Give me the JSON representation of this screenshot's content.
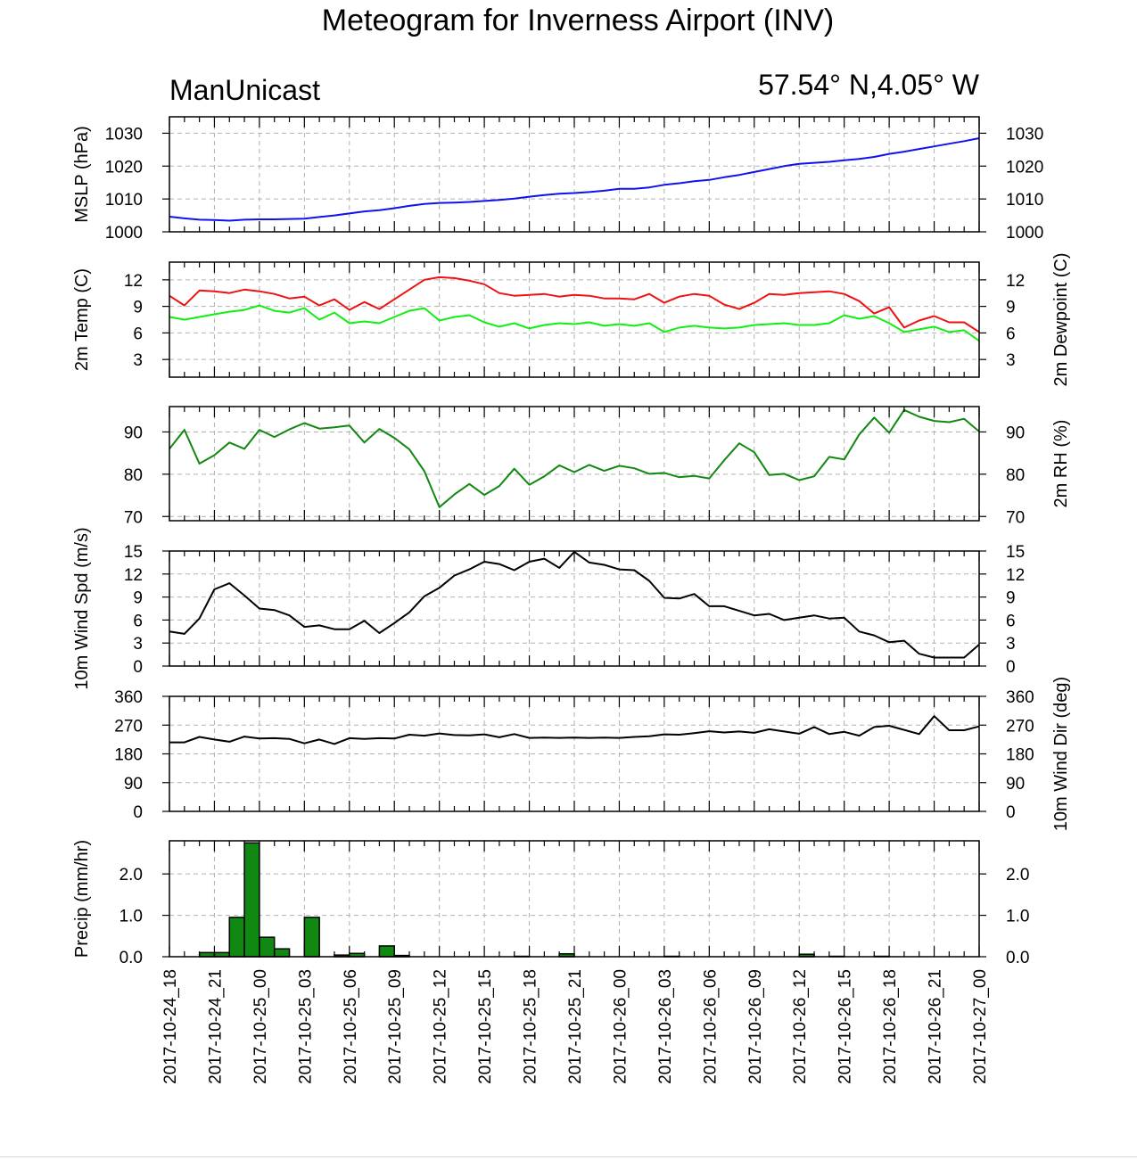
{
  "title": "Meteogram for Inverness Airport (INV)",
  "model": "ManUnicast",
  "location": "57.54° N,4.05° W",
  "colors": {
    "mslp": "#1111ee",
    "temp": "#ee1111",
    "dewpoint": "#11ee11",
    "rh": "#118811",
    "wind": "#000000",
    "precip_fill": "#118811",
    "grid": "#b0b0b0"
  },
  "chart_data": {
    "type": "line",
    "x_unit": "hours after 2017-10-24_18",
    "x_ticks": [
      "2017-10-24_18",
      "2017-10-24_21",
      "2017-10-25_00",
      "2017-10-25_03",
      "2017-10-25_06",
      "2017-10-25_09",
      "2017-10-25_12",
      "2017-10-25_15",
      "2017-10-25_18",
      "2017-10-25_21",
      "2017-10-26_00",
      "2017-10-26_03",
      "2017-10-26_06",
      "2017-10-26_09",
      "2017-10-26_12",
      "2017-10-26_15",
      "2017-10-26_18",
      "2017-10-26_21",
      "2017-10-27_00"
    ],
    "panels": [
      {
        "id": "mslp",
        "ylabel_left": "MSLP (hPa)",
        "ylabel_right": "",
        "ylim": [
          1000,
          1035
        ],
        "yticks": [
          1000,
          1010,
          1020,
          1030
        ],
        "right_ticks": true,
        "series": [
          {
            "color_key": "mslp",
            "x": [
              0,
              1,
              2,
              3,
              4,
              5,
              6,
              7,
              8,
              9,
              10,
              11,
              12,
              13,
              14,
              15,
              16,
              17,
              18,
              19,
              20,
              21,
              22,
              23,
              24,
              25,
              26,
              27,
              28,
              29,
              30,
              31,
              32,
              33,
              34,
              35,
              36,
              37,
              38,
              39,
              40,
              41,
              42,
              43,
              44,
              45,
              46,
              47,
              48,
              49,
              50,
              51,
              52,
              53,
              54
            ],
            "values": [
              1004.6,
              1004.1,
              1003.7,
              1003.6,
              1003.4,
              1003.7,
              1003.8,
              1003.8,
              1003.9,
              1004.0,
              1004.5,
              1005.0,
              1005.6,
              1006.2,
              1006.6,
              1007.2,
              1007.9,
              1008.5,
              1008.8,
              1008.9,
              1009.1,
              1009.4,
              1009.7,
              1010.1,
              1010.7,
              1011.2,
              1011.6,
              1011.8,
              1012.1,
              1012.5,
              1013.1,
              1013.1,
              1013.5,
              1014.3,
              1014.8,
              1015.4,
              1015.8,
              1016.6,
              1017.3,
              1018.2,
              1019.1,
              1020.0,
              1020.7,
              1021.0,
              1021.3,
              1021.8,
              1022.2,
              1022.8,
              1023.7,
              1024.4,
              1025.2,
              1026.0,
              1026.8,
              1027.6,
              1028.5
            ]
          }
        ]
      },
      {
        "id": "temp",
        "ylabel_left": "2m Temp (C)",
        "ylabel_right": "2m Dewpoint (C)",
        "ylim": [
          1,
          14
        ],
        "yticks": [
          3,
          6,
          9,
          12
        ],
        "right_ticks": true,
        "series": [
          {
            "color_key": "temp",
            "x": [
              0,
              1,
              2,
              3,
              4,
              5,
              6,
              7,
              8,
              9,
              10,
              11,
              12,
              13,
              14,
              15,
              16,
              17,
              18,
              19,
              20,
              21,
              22,
              23,
              24,
              25,
              26,
              27,
              28,
              29,
              30,
              31,
              32,
              33,
              34,
              35,
              36,
              37,
              38,
              39,
              40,
              41,
              42,
              43,
              44,
              45,
              46,
              47,
              48,
              49,
              50,
              51,
              52,
              53,
              54
            ],
            "values": [
              10.2,
              9.1,
              10.8,
              10.7,
              10.5,
              10.9,
              10.7,
              10.4,
              9.9,
              10.1,
              9.1,
              9.8,
              8.6,
              9.5,
              8.7,
              9.8,
              10.9,
              12.0,
              12.3,
              12.2,
              11.9,
              11.5,
              10.5,
              10.2,
              10.3,
              10.4,
              10.1,
              10.3,
              10.2,
              9.9,
              9.9,
              9.8,
              10.4,
              9.4,
              10.1,
              10.4,
              10.2,
              9.2,
              8.7,
              9.4,
              10.4,
              10.3,
              10.5,
              10.6,
              10.7,
              10.4,
              9.6,
              8.2,
              8.9,
              6.6,
              7.4,
              7.9,
              7.2,
              7.2,
              6.1
            ]
          },
          {
            "color_key": "dewpoint",
            "x": [
              0,
              1,
              2,
              3,
              4,
              5,
              6,
              7,
              8,
              9,
              10,
              11,
              12,
              13,
              14,
              15,
              16,
              17,
              18,
              19,
              20,
              21,
              22,
              23,
              24,
              25,
              26,
              27,
              28,
              29,
              30,
              31,
              32,
              33,
              34,
              35,
              36,
              37,
              38,
              39,
              40,
              41,
              42,
              43,
              44,
              45,
              46,
              47,
              48,
              49,
              50,
              51,
              52,
              53,
              54
            ],
            "values": [
              7.8,
              7.5,
              7.8,
              8.1,
              8.4,
              8.6,
              9.1,
              8.5,
              8.3,
              8.8,
              7.5,
              8.3,
              7.1,
              7.3,
              7.1,
              7.8,
              8.5,
              8.8,
              7.4,
              7.8,
              8.0,
              7.2,
              6.7,
              7.1,
              6.5,
              6.9,
              7.1,
              7.0,
              7.2,
              6.8,
              7.0,
              6.8,
              7.1,
              6.1,
              6.6,
              6.8,
              6.6,
              6.5,
              6.6,
              6.9,
              7.0,
              7.1,
              6.9,
              6.9,
              7.1,
              8.0,
              7.6,
              7.9,
              7.1,
              6.1,
              6.4,
              6.7,
              6.1,
              6.3,
              5.1
            ]
          }
        ]
      },
      {
        "id": "rh",
        "ylabel_left": "",
        "ylabel_right": "2m RH (%)",
        "ylim": [
          69,
          96
        ],
        "yticks": [
          70,
          80,
          90
        ],
        "right_ticks": true,
        "series": [
          {
            "color_key": "rh",
            "x": [
              0,
              1,
              2,
              3,
              4,
              5,
              6,
              7,
              8,
              9,
              10,
              11,
              12,
              13,
              14,
              15,
              16,
              17,
              18,
              19,
              20,
              21,
              22,
              23,
              24,
              25,
              26,
              27,
              28,
              29,
              30,
              31,
              32,
              33,
              34,
              35,
              36,
              37,
              38,
              39,
              40,
              41,
              42,
              43,
              44,
              45,
              46,
              47,
              48,
              49,
              50,
              51,
              52,
              53,
              54
            ],
            "values": [
              86.0,
              90.5,
              82.5,
              84.5,
              87.5,
              86.0,
              90.5,
              88.8,
              90.6,
              92.1,
              90.8,
              91.1,
              91.5,
              87.5,
              90.7,
              88.6,
              85.9,
              80.7,
              72.2,
              75.2,
              77.7,
              75.1,
              77.2,
              81.3,
              77.5,
              79.5,
              82.1,
              80.5,
              82.2,
              80.8,
              82.0,
              81.4,
              80.1,
              80.3,
              79.3,
              79.6,
              79.0,
              83.3,
              87.3,
              85.2,
              79.8,
              80.1,
              78.6,
              79.5,
              84.1,
              83.5,
              89.4,
              93.4,
              89.8,
              95.2,
              93.6,
              92.6,
              92.3,
              93.1,
              90.1
            ]
          }
        ]
      },
      {
        "id": "wind_spd",
        "ylabel_left": "10m Wind Spd (m/s)",
        "ylabel_right": "",
        "ylim": [
          0,
          15
        ],
        "yticks": [
          0,
          3,
          6,
          9,
          12,
          15
        ],
        "right_ticks": true,
        "series": [
          {
            "color_key": "wind",
            "x": [
              0,
              1,
              2,
              3,
              4,
              5,
              6,
              7,
              8,
              9,
              10,
              11,
              12,
              13,
              14,
              15,
              16,
              17,
              18,
              19,
              20,
              21,
              22,
              23,
              24,
              25,
              26,
              27,
              28,
              29,
              30,
              31,
              32,
              33,
              34,
              35,
              36,
              37,
              38,
              39,
              40,
              41,
              42,
              43,
              44,
              45,
              46,
              47,
              48,
              49,
              50,
              51,
              52,
              53,
              54
            ],
            "values": [
              4.5,
              4.2,
              6.2,
              10.0,
              10.8,
              9.2,
              7.5,
              7.3,
              6.6,
              5.1,
              5.3,
              4.8,
              4.8,
              5.9,
              4.3,
              5.6,
              7.0,
              9.1,
              10.2,
              11.8,
              12.6,
              13.6,
              13.3,
              12.5,
              13.6,
              14.0,
              12.8,
              14.9,
              13.5,
              13.2,
              12.6,
              12.5,
              11.1,
              8.9,
              8.8,
              9.4,
              7.8,
              7.8,
              7.2,
              6.6,
              6.8,
              6.0,
              6.3,
              6.6,
              6.2,
              6.3,
              4.5,
              4.0,
              3.1,
              3.3,
              1.6,
              1.1,
              1.1,
              1.1,
              2.8
            ]
          }
        ]
      },
      {
        "id": "wind_dir",
        "ylabel_left": "",
        "ylabel_right": "10m Wind Dir (deg)",
        "ylim": [
          0,
          360
        ],
        "yticks": [
          0,
          90,
          180,
          270,
          360
        ],
        "right_ticks": true,
        "series": [
          {
            "color_key": "wind",
            "x": [
              0,
              1,
              2,
              3,
              4,
              5,
              6,
              7,
              8,
              9,
              10,
              11,
              12,
              13,
              14,
              15,
              16,
              17,
              18,
              19,
              20,
              21,
              22,
              23,
              24,
              25,
              26,
              27,
              28,
              29,
              30,
              31,
              32,
              33,
              34,
              35,
              36,
              37,
              38,
              39,
              40,
              41,
              42,
              43,
              44,
              45,
              46,
              47,
              48,
              49,
              50,
              51,
              52,
              53,
              54
            ],
            "values": [
              216,
              216,
              233,
              225,
              218,
              234,
              228,
              229,
              227,
              213,
              225,
              211,
              229,
              227,
              229,
              228,
              240,
              237,
              244,
              239,
              238,
              241,
              232,
              242,
              230,
              231,
              230,
              231,
              230,
              231,
              230,
              233,
              235,
              241,
              240,
              245,
              251,
              247,
              250,
              246,
              257,
              250,
              243,
              264,
              242,
              249,
              237,
              264,
              268,
              255,
              242,
              298,
              254,
              254,
              266
            ]
          }
        ]
      },
      {
        "id": "precip",
        "ylabel_left": "Precip (mm/hr)",
        "ylabel_right": "",
        "ylim": [
          0,
          2.8
        ],
        "yticks": [
          0.0,
          1.0,
          2.0
        ],
        "ytick_labels": [
          "0.0",
          "1.0",
          "2.0"
        ],
        "right_ticks": true,
        "bars": {
          "color_key": "precip_fill",
          "x": [
            3,
            4,
            5,
            6,
            7,
            8,
            10,
            12,
            13,
            15,
            16,
            24,
            27,
            34,
            43,
            45,
            48
          ],
          "values": [
            0.1,
            0.1,
            0.95,
            2.75,
            0.47,
            0.19,
            0.95,
            0.04,
            0.08,
            0.26,
            0.03,
            0.01,
            0.07,
            0.01,
            0.06,
            0.01,
            0.01
          ]
        }
      }
    ]
  }
}
